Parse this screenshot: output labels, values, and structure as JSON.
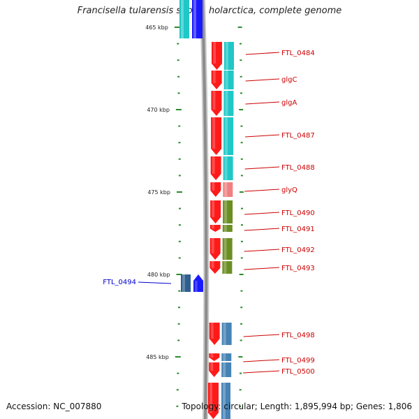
{
  "title": "Francisella tularensis subsp. holarctica, complete genome",
  "footer": {
    "accession": "Accession: NC_007880",
    "summary": "Topology: circular; Length: 1,895,994 bp; Genes: 1,806"
  },
  "colors": {
    "backbone": "#8c8c8c",
    "tick": "#2e8b2e",
    "plus_label": "#cc0000",
    "minus_label": "#0000cc",
    "cds_plus": "#ff1a1a",
    "cds_minus": "#1a1aff",
    "cog_cyan": "#1fc7c7",
    "cog_pink": "#f08080",
    "cog_olive": "#6b8e23",
    "cog_steel": "#4682b4",
    "cog_darksteel": "#2e5f8f"
  },
  "scale": {
    "unit": "kbp",
    "major_ticks_kbp": [
      465,
      470,
      475,
      480,
      485
    ]
  },
  "genes": [
    {
      "label": "FTL_0484",
      "strand": "+",
      "cog": "cyan"
    },
    {
      "label": "glgC",
      "strand": "+",
      "cog": "cyan"
    },
    {
      "label": "glgA",
      "strand": "+",
      "cog": "cyan"
    },
    {
      "label": "FTL_0487",
      "strand": "+",
      "cog": "cyan"
    },
    {
      "label": "FTL_0488",
      "strand": "+",
      "cog": "cyan"
    },
    {
      "label": "glyQ",
      "strand": "+",
      "cog": "pink"
    },
    {
      "label": "FTL_0490",
      "strand": "+",
      "cog": "olive"
    },
    {
      "label": "FTL_0491",
      "strand": "+",
      "cog": "olive"
    },
    {
      "label": "FTL_0492",
      "strand": "+",
      "cog": "olive"
    },
    {
      "label": "FTL_0493",
      "strand": "+",
      "cog": "olive"
    },
    {
      "label": "FTL_0494",
      "strand": "-",
      "cog": "darksteel"
    },
    {
      "label": "FTL_0498",
      "strand": "+",
      "cog": "steel"
    },
    {
      "label": "FTL_0499",
      "strand": "+",
      "cog": "steel"
    },
    {
      "label": "FTL_0500",
      "strand": "+",
      "cog": "steel"
    }
  ]
}
